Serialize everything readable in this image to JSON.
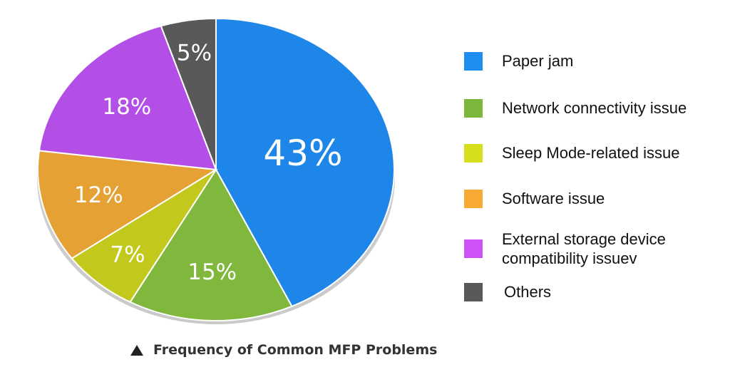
{
  "chart_data": {
    "type": "pie",
    "categories": [
      "Paper jam",
      "Network connectivity issue",
      "Sleep Mode-related issue",
      "Software issue",
      "External storage device compatibility issuev",
      "Others"
    ],
    "values": [
      43,
      15,
      7,
      12,
      18,
      5
    ],
    "data_labels": [
      "43%",
      "15%",
      "7%",
      "12%",
      "18%",
      "5%"
    ],
    "colors": [
      "#1e86e9",
      "#7fb83c",
      "#c3c81d",
      "#e5a134",
      "#b34fe6",
      "#595959"
    ],
    "legend_colors": [
      "#1f8ef1",
      "#7cb83b",
      "#d6df1d",
      "#f6a933",
      "#cc52f5",
      "#595959"
    ],
    "legend_position": "right",
    "start_angle_deg": 0,
    "direction": "clockwise",
    "style": "3d-tilted",
    "title": ""
  },
  "caption": {
    "text": "Frequency of Common MFP Problems",
    "icon": "triangle-up-icon"
  }
}
